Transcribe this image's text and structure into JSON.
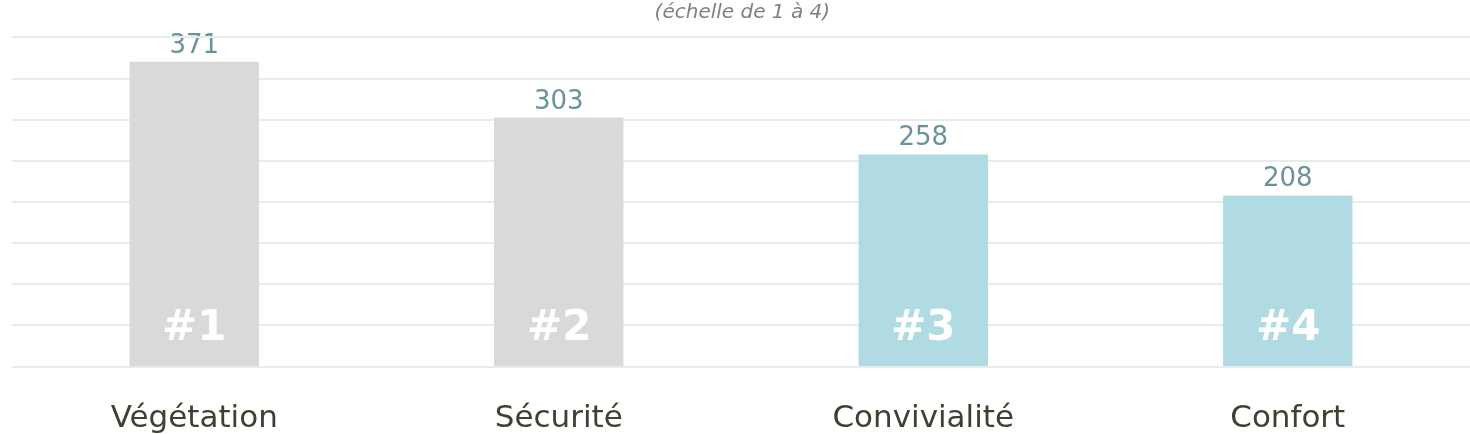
{
  "chart_data": {
    "type": "bar",
    "subtitle": "(échelle de 1 à 4)",
    "categories": [
      "Végétation",
      "Sécurité",
      "Convivialité",
      "Confort"
    ],
    "values": [
      371,
      303,
      258,
      208
    ],
    "colors": [
      "#d9d9d9",
      "#d9d9d9",
      "#b0dbe2",
      "#b0dbe2"
    ],
    "data_labels": true,
    "annotations": [
      "#1",
      "#2",
      "#3",
      "#4"
    ],
    "ylim": [
      0,
      400
    ],
    "yticks": [
      {
        "value": 0,
        "label": null
      },
      {
        "value": 50,
        "label": null
      },
      {
        "value": 100,
        "label": null
      },
      {
        "value": 150,
        "label": null
      },
      {
        "value": 200,
        "label": null
      },
      {
        "value": 250,
        "label": null
      },
      {
        "value": 300,
        "label": null
      },
      {
        "value": 350,
        "label": null
      },
      {
        "value": 400,
        "label": null
      }
    ],
    "grid": "y",
    "tick_labels": "x"
  }
}
